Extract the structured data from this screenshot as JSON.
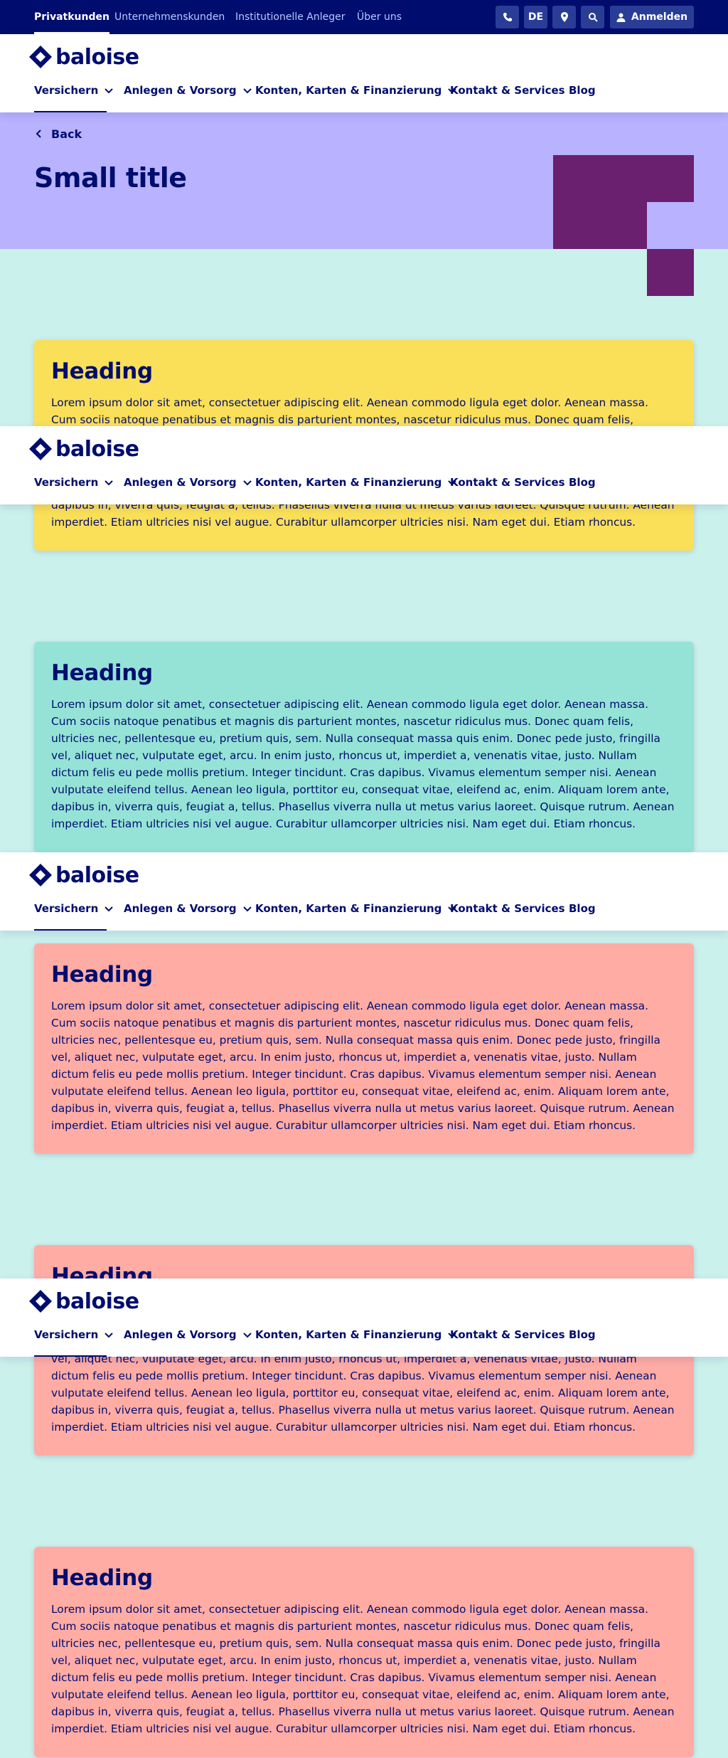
{
  "topbar": {
    "segments": [
      "Privatkunden",
      "Unternehmenskunden",
      "Institutionelle Anleger",
      "Über uns"
    ],
    "language": "DE",
    "login_label": "Anmelden",
    "icons": [
      "phone-icon",
      "location-pin-icon",
      "search-icon",
      "user-icon"
    ]
  },
  "header": {
    "logo_text": "baloise",
    "nav": [
      "Versichern",
      "Anlegen & Vorsorg",
      "Konten, Karten & Finanzierung",
      "Kontakt & Services",
      "Blog"
    ]
  },
  "hero": {
    "back_label": "Back",
    "title": "Small title"
  },
  "cards": [
    {
      "heading": "Heading",
      "body": "Lorem ipsum dolor sit amet, consectetuer adipiscing elit. Aenean commodo ligula eget dolor. Aenean massa. Cum sociis natoque penatibus et magnis dis parturient montes, nascetur ridiculus mus. Donec quam felis, ultricies nec, pellentesque eu, pretium quis, sem. Nulla consequat massa quis enim. Donec pede justo, fringilla vel, aliquet nec, vulputate eget, arcu. In enim justo, rhoncus ut, imperdiet a, venenatis vitae, justo. Nullam dictum felis eu pede mollis pretium. Integer tincidunt. Cras dapibus. Vivamus elementum semper nisi. Aenean vulputate eleifend tellus. Aenean leo ligula, porttitor eu, consequat vitae, eleifend ac, enim. Aliquam lorem ante, dapibus in, viverra quis, feugiat a, tellus. Phasellus viverra nulla ut metus varius laoreet. Quisque rutrum. Aenean imperdiet. Etiam ultricies nisi vel augue. Curabitur ullamcorper ultricies nisi. Nam eget dui. Etiam rhoncus."
    },
    {
      "heading": "Heading",
      "body": "Lorem ipsum dolor sit amet, consectetuer adipiscing elit. Aenean commodo ligula eget dolor. Aenean massa. Cum sociis natoque penatibus et magnis dis parturient montes, nascetur ridiculus mus. Donec quam felis, ultricies nec, pellentesque eu, pretium quis, sem. Nulla consequat massa quis enim. Donec pede justo, fringilla vel, aliquet nec, vulputate eget, arcu. In enim justo, rhoncus ut, imperdiet a, venenatis vitae, justo. Nullam dictum felis eu pede mollis pretium. Integer tincidunt. Cras dapibus. Vivamus elementum semper nisi. Aenean vulputate eleifend tellus. Aenean leo ligula, porttitor eu, consequat vitae, eleifend ac, enim. Aliquam lorem ante, dapibus in, viverra quis, feugiat a, tellus. Phasellus viverra nulla ut metus varius laoreet. Quisque rutrum. Aenean imperdiet. Etiam ultricies nisi vel augue. Curabitur ullamcorper ultricies nisi. Nam eget dui. Etiam rhoncus."
    },
    {
      "heading": "Heading",
      "body": "Lorem ipsum dolor sit amet, consectetuer adipiscing elit. Aenean commodo ligula eget dolor. Aenean massa. Cum sociis natoque penatibus et magnis dis parturient montes, nascetur ridiculus mus. Donec quam felis, ultricies nec, pellentesque eu, pretium quis, sem. Nulla consequat massa quis enim. Donec pede justo, fringilla vel, aliquet nec, vulputate eget, arcu. In enim justo, rhoncus ut, imperdiet a, venenatis vitae, justo. Nullam dictum felis eu pede mollis pretium. Integer tincidunt. Cras dapibus. Vivamus elementum semper nisi. Aenean vulputate eleifend tellus. Aenean leo ligula, porttitor eu, consequat vitae, eleifend ac, enim. Aliquam lorem ante, dapibus in, viverra quis, feugiat a, tellus. Phasellus viverra nulla ut metus varius laoreet. Quisque rutrum. Aenean imperdiet. Etiam ultricies nisi vel augue. Curabitur ullamcorper ultricies nisi. Nam eget dui. Etiam rhoncus."
    },
    {
      "heading": "Heading",
      "body": "Lorem ipsum dolor sit amet, consectetuer adipiscing elit. Aenean commodo ligula eget dolor. Aenean massa. Cum sociis natoque penatibus et magnis dis parturient montes, nascetur ridiculus mus. Donec quam felis, ultricies nec, pellentesque eu, pretium quis, sem. Nulla consequat massa quis enim. Donec pede justo, fringilla vel, aliquet nec, vulputate eget, arcu. In enim justo, rhoncus ut, imperdiet a, venenatis vitae, justo. Nullam dictum felis eu pede mollis pretium. Integer tincidunt. Cras dapibus. Vivamus elementum semper nisi. Aenean vulputate eleifend tellus. Aenean leo ligula, porttitor eu, consequat vitae, eleifend ac, enim. Aliquam lorem ante, dapibus in, viverra quis, feugiat a, tellus. Phasellus viverra nulla ut metus varius laoreet. Quisque rutrum. Aenean imperdiet. Etiam ultricies nisi vel augue. Curabitur ullamcorper ultricies nisi. Nam eget dui. Etiam rhoncus."
    },
    {
      "heading": "Heading",
      "body": "Lorem ipsum dolor sit amet, consectetuer adipiscing elit. Aenean commodo ligula eget dolor. Aenean massa. Cum sociis natoque penatibus et magnis dis parturient montes, nascetur ridiculus mus. Donec quam felis, ultricies nec, pellentesque eu, pretium quis, sem. Nulla consequat massa quis enim. Donec pede justo, fringilla vel, aliquet nec, vulputate eget, arcu. In enim justo, rhoncus ut, imperdiet a, venenatis vitae, justo. Nullam dictum felis eu pede mollis pretium. Integer tincidunt. Cras dapibus. Vivamus elementum semper nisi. Aenean vulputate eleifend tellus. Aenean leo ligula, porttitor eu, consequat vitae, eleifend ac, enim. Aliquam lorem ante, dapibus in, viverra quis, feugiat a, tellus. Phasellus viverra nulla ut metus varius laoreet. Quisque rutrum. Aenean imperdiet. Etiam ultricies nisi vel augue. Curabitur ullamcorper ultricies nisi. Nam eget dui. Etiam rhoncus."
    }
  ],
  "colors": {
    "brand_navy": "#000d6e",
    "hero_purple": "#b8b2ff",
    "deco_plum": "#6a1f6f",
    "page_mint": "#cbf1ec",
    "card_yellow": "#fadf59",
    "card_green": "#95e3d6",
    "card_red": "#ffaca5"
  }
}
